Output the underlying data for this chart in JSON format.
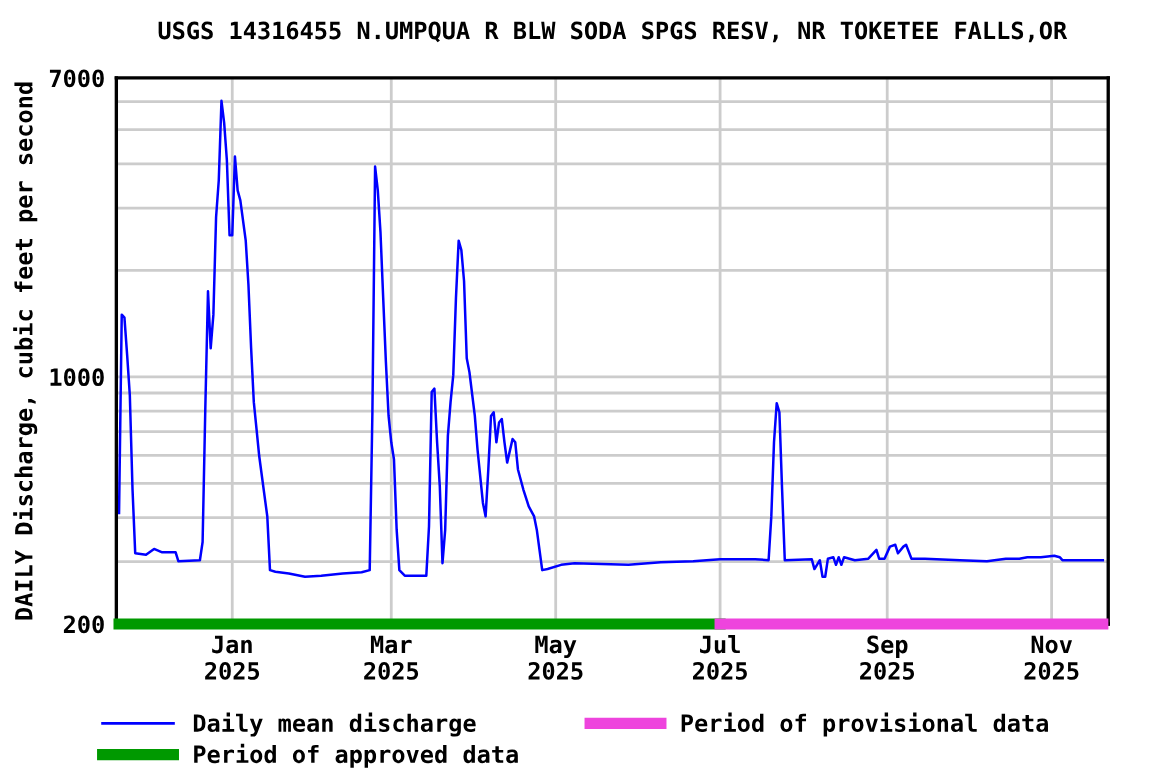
{
  "chart_data": {
    "type": "line",
    "title": "USGS 14316455 N.UMPQUA R BLW SODA SPGS RESV, NR TOKETEE FALLS,OR",
    "ylabel": "DAILY Discharge, cubic feet per second",
    "log": "y",
    "grid": true,
    "legend": "bottom",
    "marker": "none",
    "line_style": "solid",
    "xlim": [
      "2024-11-19",
      "2025-11-22"
    ],
    "xticks": [
      {
        "value": "2025-01-01",
        "label": "Jan\n2025"
      },
      {
        "value": "2025-03-01",
        "label": "Mar\n2025"
      },
      {
        "value": "2025-05-01",
        "label": "May\n2025"
      },
      {
        "value": "2025-07-01",
        "label": "Jul\n2025"
      },
      {
        "value": "2025-09-01",
        "label": "Sep\n2025"
      },
      {
        "value": "2025-11-01",
        "label": "Nov\n2025"
      }
    ],
    "ylim": [
      200,
      7000
    ],
    "yticks": [
      200,
      {
        "value": 300,
        "label": null
      },
      {
        "value": 400,
        "label": null
      },
      {
        "value": 500,
        "label": null
      },
      {
        "value": 600,
        "label": null
      },
      {
        "value": 700,
        "label": null
      },
      {
        "value": 800,
        "label": null
      },
      {
        "value": 900,
        "label": null
      },
      1000,
      {
        "value": 2000,
        "label": null
      },
      {
        "value": 3000,
        "label": null
      },
      {
        "value": 4000,
        "label": null
      },
      {
        "value": 5000,
        "label": null
      },
      {
        "value": 6000,
        "label": null
      },
      7000
    ],
    "series": [
      {
        "name": "Daily mean discharge",
        "color": "#0000ff",
        "x": [
          "2024-11-20",
          "2024-11-21",
          "2024-11-22",
          "2024-11-23",
          "2024-11-24",
          "2024-11-25",
          "2024-11-26",
          "2024-11-30",
          "2024-12-03",
          "2024-12-06",
          "2024-12-11",
          "2024-12-12",
          "2024-12-20",
          "2024-12-21",
          "2024-12-22",
          "2024-12-23",
          "2024-12-24",
          "2024-12-25",
          "2024-12-26",
          "2024-12-27",
          "2024-12-28",
          "2024-12-29",
          "2024-12-30",
          "2024-12-31",
          "2025-01-01",
          "2025-01-02",
          "2025-01-03",
          "2025-01-04",
          "2025-01-06",
          "2025-01-07",
          "2025-01-08",
          "2025-01-09",
          "2025-01-10",
          "2025-01-11",
          "2025-01-13",
          "2025-01-14",
          "2025-01-15",
          "2025-01-17",
          "2025-01-22",
          "2025-01-28",
          "2025-02-03",
          "2025-02-11",
          "2025-02-18",
          "2025-02-21",
          "2025-02-22",
          "2025-02-23",
          "2025-02-24",
          "2025-02-25",
          "2025-02-26",
          "2025-02-27",
          "2025-02-28",
          "2025-03-01",
          "2025-03-02",
          "2025-03-03",
          "2025-03-04",
          "2025-03-06",
          "2025-03-10",
          "2025-03-14",
          "2025-03-15",
          "2025-03-16",
          "2025-03-17",
          "2025-03-18",
          "2025-03-19",
          "2025-03-20",
          "2025-03-21",
          "2025-03-22",
          "2025-03-23",
          "2025-03-24",
          "2025-03-25",
          "2025-03-26",
          "2025-03-27",
          "2025-03-28",
          "2025-03-29",
          "2025-03-30",
          "2025-04-01",
          "2025-04-02",
          "2025-04-04",
          "2025-04-05",
          "2025-04-06",
          "2025-04-07",
          "2025-04-08",
          "2025-04-09",
          "2025-04-10",
          "2025-04-11",
          "2025-04-12",
          "2025-04-13",
          "2025-04-15",
          "2025-04-16",
          "2025-04-17",
          "2025-04-19",
          "2025-04-21",
          "2025-04-23",
          "2025-04-24",
          "2025-04-26",
          "2025-04-28",
          "2025-05-03",
          "2025-05-08",
          "2025-05-28",
          "2025-06-09",
          "2025-06-21",
          "2025-07-01",
          "2025-07-14",
          "2025-07-19",
          "2025-07-20",
          "2025-07-21",
          "2025-07-22",
          "2025-07-23",
          "2025-07-24",
          "2025-07-25",
          "2025-08-04",
          "2025-08-05",
          "2025-08-07",
          "2025-08-08",
          "2025-08-09",
          "2025-08-10",
          "2025-08-12",
          "2025-08-13",
          "2025-08-14",
          "2025-08-15",
          "2025-08-16",
          "2025-08-20",
          "2025-08-25",
          "2025-08-28",
          "2025-08-29",
          "2025-08-31",
          "2025-09-02",
          "2025-09-04",
          "2025-09-05",
          "2025-09-07",
          "2025-09-08",
          "2025-09-10",
          "2025-09-15",
          "2025-09-28",
          "2025-10-08",
          "2025-10-15",
          "2025-10-20",
          "2025-10-23",
          "2025-10-28",
          "2025-11-02",
          "2025-11-04",
          "2025-11-05",
          "2025-11-20"
        ],
        "values": [
          412,
          1499,
          1470,
          1153,
          887,
          480,
          317,
          314,
          326,
          319,
          319,
          301,
          303,
          341,
          811,
          1745,
          1204,
          1499,
          2826,
          3596,
          6031,
          5226,
          4102,
          2513,
          2513,
          4195,
          3367,
          3155,
          2426,
          1824,
          1205,
          848,
          712,
          597,
          459,
          403,
          284,
          281,
          278,
          272,
          274,
          278,
          280,
          284,
          794,
          3930,
          3367,
          2560,
          1672,
          1103,
          775,
          653,
          584,
          369,
          284,
          274,
          274,
          274,
          378,
          906,
          926,
          653,
          491,
          297,
          369,
          681,
          848,
          1011,
          1672,
          2426,
          2283,
          1866,
          1128,
          1031,
          775,
          623,
          440,
          403,
          547,
          775,
          794,
          653,
          743,
          760,
          653,
          572,
          667,
          653,
          547,
          480,
          430,
          403,
          369,
          284,
          286,
          294,
          297,
          294,
          299,
          301,
          305,
          305,
          303,
          403,
          653,
          842,
          794,
          480,
          303,
          305,
          286,
          303,
          272,
          272,
          306,
          309,
          294,
          309,
          294,
          309,
          303,
          306,
          324,
          306,
          306,
          331,
          335,
          317,
          331,
          335,
          306,
          306,
          303,
          301,
          306,
          306,
          309,
          309,
          312,
          309,
          303,
          303
        ]
      },
      {
        "name": "Period of approved data",
        "color": "#009900",
        "x": [
          "2024-11-20",
          "2025-07-01"
        ],
        "values": [
          200,
          200
        ]
      },
      {
        "name": "Period of provisional data",
        "color": "#ee44dd",
        "x": [
          "2025-07-01",
          "2025-11-20"
        ],
        "values": [
          200,
          200
        ]
      }
    ]
  }
}
